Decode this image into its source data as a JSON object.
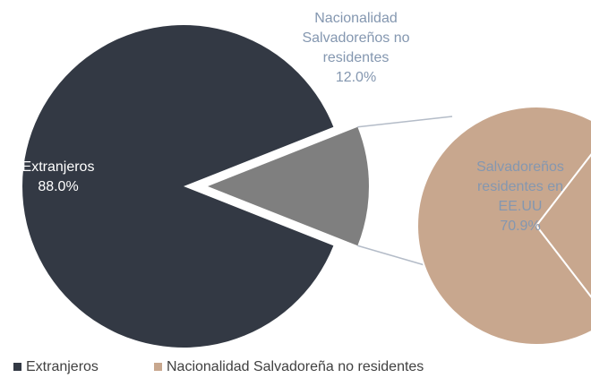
{
  "chart_data": {
    "type": "pie-of-pie",
    "pies": [
      {
        "labels": [
          "Extranjeros",
          "Nacionalidad Salvadoreños no residentes"
        ],
        "values": [
          88.0,
          12.0
        ],
        "value_labels": [
          "88.0%",
          "12.0%"
        ],
        "colors": [
          "#333944",
          "#7f7f7f"
        ]
      },
      {
        "labels": [
          "Salvadoreños residentes en EE.UU",
          null
        ],
        "values": [
          70.9,
          29.1
        ],
        "value_labels": [
          "70.9%",
          null
        ],
        "colors": [
          "#c8a78e",
          "#c8a78e"
        ]
      }
    ],
    "legend": [
      "Extranjeros",
      "Nacionalidad Salvadoreña no residentes"
    ]
  }
}
